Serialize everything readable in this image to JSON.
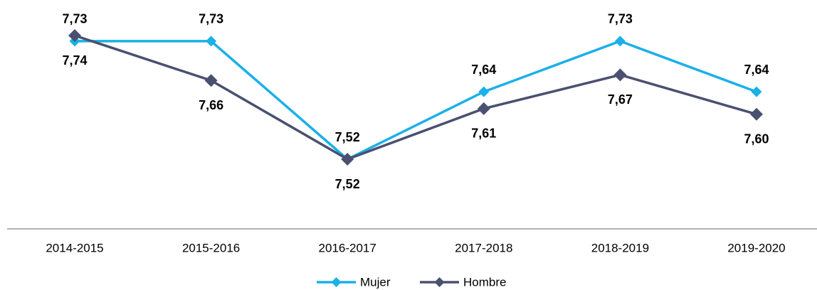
{
  "chart_data": {
    "type": "line",
    "categories": [
      "2014-2015",
      "2015-2016",
      "2016-2017",
      "2017-2018",
      "2018-2019",
      "2019-2020"
    ],
    "series": [
      {
        "name": "Mujer",
        "color": "#1ab0e8",
        "values": [
          7.73,
          7.73,
          7.52,
          7.64,
          7.73,
          7.64
        ],
        "value_labels": [
          "7,73",
          "7,73",
          "7,52",
          "7,64",
          "7,73",
          "7,64"
        ]
      },
      {
        "name": "Hombre",
        "color": "#4a5070",
        "values": [
          7.74,
          7.66,
          7.52,
          7.61,
          7.67,
          7.6
        ],
        "value_labels": [
          "7,74",
          "7,66",
          "7,52",
          "7,61",
          "7,67",
          "7,60"
        ]
      }
    ],
    "legend": "bottom"
  }
}
